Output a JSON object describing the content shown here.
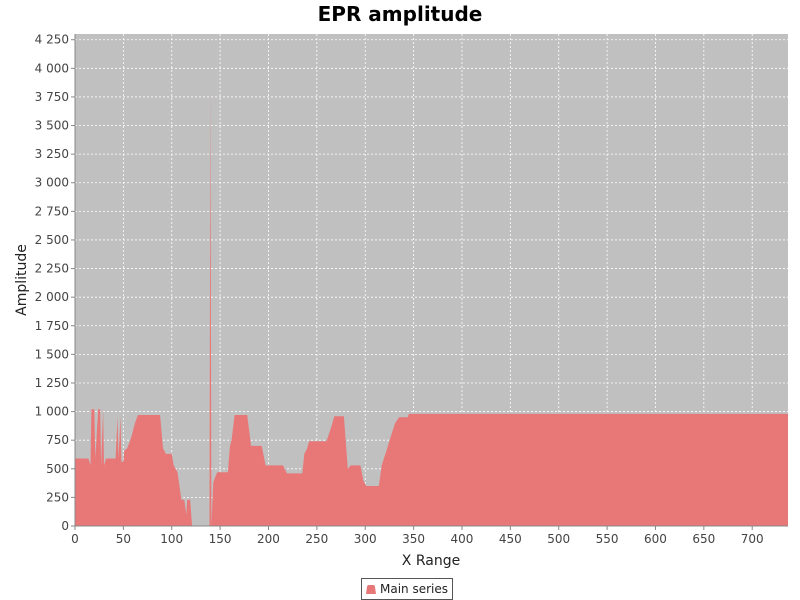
{
  "chart_data": {
    "type": "area",
    "title": "EPR amplitude",
    "xlabel": "X Range",
    "ylabel": "Amplitude",
    "xlim": [
      0,
      737
    ],
    "ylim": [
      0,
      4300
    ],
    "x_ticks": [
      0,
      50,
      100,
      150,
      200,
      250,
      300,
      350,
      400,
      450,
      500,
      550,
      600,
      650,
      700
    ],
    "x_tick_labels": [
      "0",
      "50",
      "100",
      "150",
      "200",
      "250",
      "300",
      "350",
      "400",
      "450",
      "500",
      "550",
      "600",
      "650",
      "700"
    ],
    "y_ticks": [
      0,
      250,
      500,
      750,
      1000,
      1250,
      1500,
      1750,
      2000,
      2250,
      2500,
      2750,
      3000,
      3250,
      3500,
      3750,
      4000,
      4250
    ],
    "y_tick_labels": [
      "0",
      "250",
      "500",
      "750",
      "1 000",
      "1 250",
      "1 500",
      "1 750",
      "2 000",
      "2 250",
      "2 500",
      "2 750",
      "3 000",
      "3 250",
      "3 500",
      "3 750",
      "4 000",
      "4 250"
    ],
    "grid": true,
    "legend_position": "bottom-center",
    "series": [
      {
        "name": "Main series",
        "color": "#e87878",
        "points": [
          [
            0,
            590
          ],
          [
            14,
            590
          ],
          [
            16,
            530
          ],
          [
            17,
            1020
          ],
          [
            20,
            1020
          ],
          [
            21,
            590
          ],
          [
            24,
            1020
          ],
          [
            26,
            1020
          ],
          [
            27,
            530
          ],
          [
            29,
            1020
          ],
          [
            30,
            530
          ],
          [
            32,
            590
          ],
          [
            42,
            590
          ],
          [
            44,
            960
          ],
          [
            45,
            590
          ],
          [
            47,
            960
          ],
          [
            48,
            560
          ],
          [
            50,
            560
          ],
          [
            51,
            660
          ],
          [
            54,
            680
          ],
          [
            58,
            770
          ],
          [
            62,
            900
          ],
          [
            65,
            970
          ],
          [
            88,
            970
          ],
          [
            91,
            680
          ],
          [
            94,
            630
          ],
          [
            100,
            630
          ],
          [
            102,
            530
          ],
          [
            106,
            470
          ],
          [
            110,
            230
          ],
          [
            113,
            230
          ],
          [
            115,
            100
          ],
          [
            116,
            230
          ],
          [
            119,
            230
          ],
          [
            121,
            0
          ],
          [
            139,
            0
          ],
          [
            140,
            3850
          ],
          [
            141,
            0
          ],
          [
            143,
            380
          ],
          [
            145,
            430
          ],
          [
            147,
            470
          ],
          [
            158,
            470
          ],
          [
            160,
            690
          ],
          [
            162,
            760
          ],
          [
            165,
            970
          ],
          [
            178,
            970
          ],
          [
            182,
            700
          ],
          [
            193,
            700
          ],
          [
            197,
            530
          ],
          [
            215,
            530
          ],
          [
            219,
            460
          ],
          [
            235,
            460
          ],
          [
            237,
            630
          ],
          [
            240,
            680
          ],
          [
            242,
            740
          ],
          [
            260,
            740
          ],
          [
            265,
            870
          ],
          [
            268,
            960
          ],
          [
            278,
            960
          ],
          [
            282,
            500
          ],
          [
            285,
            530
          ],
          [
            295,
            530
          ],
          [
            298,
            400
          ],
          [
            301,
            350
          ],
          [
            314,
            350
          ],
          [
            317,
            530
          ],
          [
            322,
            660
          ],
          [
            327,
            800
          ],
          [
            331,
            900
          ],
          [
            335,
            950
          ],
          [
            344,
            950
          ],
          [
            345,
            980
          ],
          [
            737,
            980
          ]
        ]
      }
    ]
  }
}
